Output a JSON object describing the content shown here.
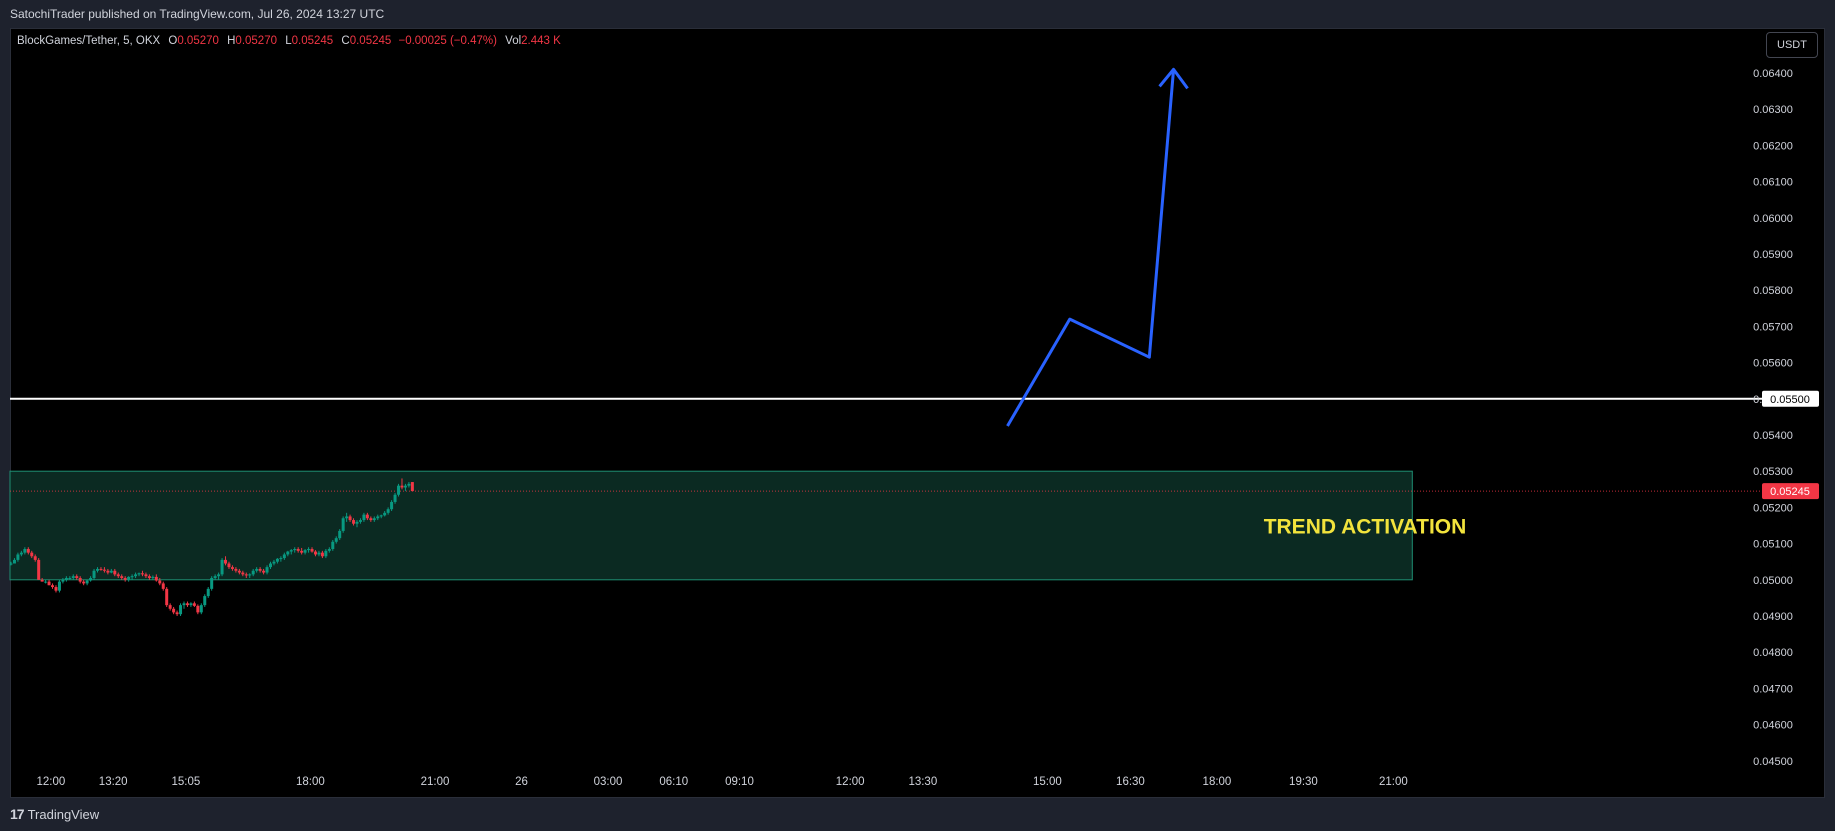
{
  "header": {
    "published_by": "SatochiTrader published on TradingView.com, Jul 26, 2024 13:27 UTC"
  },
  "legend": {
    "symbol": "BlockGames/Tether, 5, OKX",
    "open_label": "O",
    "open": "0.05270",
    "high_label": "H",
    "high": "0.05270",
    "low_label": "L",
    "low": "0.05245",
    "close_label": "C",
    "close": "0.05245",
    "change": "−0.00025 (−0.47%)",
    "vol_label": "Vol",
    "vol": "2.443 K"
  },
  "currency_button": "USDT",
  "footer": {
    "logo_text": "TradingView"
  },
  "chart_data": {
    "type": "candlestick",
    "title": "BlockGames/Tether, 5, OKX",
    "y_axis": {
      "min": 0.045,
      "max": 0.0645,
      "tick_labels": [
        "0.06400",
        "0.06300",
        "0.06200",
        "0.06100",
        "0.06000",
        "0.05900",
        "0.05800",
        "0.05700",
        "0.05600",
        "0.05500",
        "0.05400",
        "0.05300",
        "0.05200",
        "0.05100",
        "0.05000",
        "0.04900",
        "0.04800",
        "0.04700",
        "0.04600",
        "0.04500"
      ],
      "tick_values": [
        0.064,
        0.063,
        0.062,
        0.061,
        0.06,
        0.059,
        0.058,
        0.057,
        0.056,
        0.055,
        0.054,
        0.053,
        0.052,
        0.051,
        0.05,
        0.049,
        0.048,
        0.047,
        0.046,
        0.045
      ]
    },
    "x_axis": {
      "tick_labels": [
        "12:00",
        "13:20",
        "15:05",
        "18:00",
        "21:00",
        "26",
        "03:00",
        "06:10",
        "09:10",
        "12:00",
        "13:30",
        "15:00",
        "16:30",
        "18:00",
        "19:30",
        "21:00"
      ],
      "tick_index": [
        2,
        20,
        41,
        77,
        113,
        138,
        163,
        182,
        201,
        233,
        254,
        290,
        314,
        339,
        364,
        390
      ]
    },
    "horizontal_line": {
      "price": 0.055,
      "label": "0.05500",
      "color": "#ffffff"
    },
    "last_price": {
      "price": 0.05245,
      "label": "0.05245",
      "color": "#f23645"
    },
    "zone": {
      "top": 0.053,
      "bottom": 0.05,
      "start_index": 0,
      "end_index": 405,
      "label": "TREND ACTIVATION",
      "fill": "#0b2a22",
      "border": "#1f8f73",
      "text_color": "#f2e33c"
    },
    "projection": {
      "color": "#2962ff",
      "points": [
        [
          288,
          0.05425
        ],
        [
          306,
          0.0572
        ],
        [
          329,
          0.05615
        ],
        [
          336,
          0.0641
        ]
      ]
    },
    "colors": {
      "up": "#089981",
      "down": "#f23645"
    },
    "candles": [
      [
        0.05045,
        0.0505,
        0.0504,
        0.05045
      ],
      [
        0.05045,
        0.0506,
        0.05045,
        0.05055
      ],
      [
        0.05055,
        0.05075,
        0.0505,
        0.0507
      ],
      [
        0.0507,
        0.0508,
        0.05065,
        0.05075
      ],
      [
        0.05075,
        0.0509,
        0.0507,
        0.05085
      ],
      [
        0.05085,
        0.0509,
        0.0507,
        0.05075
      ],
      [
        0.05075,
        0.0508,
        0.0506,
        0.05065
      ],
      [
        0.05065,
        0.0507,
        0.0505,
        0.05055
      ],
      [
        0.05055,
        0.0506,
        0.05,
        0.05
      ],
      [
        0.05,
        0.05005,
        0.04995,
        0.04995
      ],
      [
        0.04995,
        0.05,
        0.0499,
        0.04995
      ],
      [
        0.04995,
        0.05,
        0.04985,
        0.04985
      ],
      [
        0.04985,
        0.0499,
        0.04975,
        0.0498
      ],
      [
        0.0498,
        0.04985,
        0.04965,
        0.0497
      ],
      [
        0.0497,
        0.05,
        0.04965,
        0.04995
      ],
      [
        0.04995,
        0.05005,
        0.0499,
        0.05
      ],
      [
        0.05,
        0.0501,
        0.04995,
        0.05005
      ],
      [
        0.05005,
        0.0501,
        0.05,
        0.05005
      ],
      [
        0.05005,
        0.05015,
        0.05,
        0.0501
      ],
      [
        0.0501,
        0.05015,
        0.05,
        0.05005
      ],
      [
        0.05005,
        0.0501,
        0.0499,
        0.04995
      ],
      [
        0.04995,
        0.05,
        0.04985,
        0.0499
      ],
      [
        0.0499,
        0.05,
        0.04985,
        0.04998
      ],
      [
        0.04998,
        0.0501,
        0.04995,
        0.05005
      ],
      [
        0.05005,
        0.0503,
        0.05,
        0.05025
      ],
      [
        0.05025,
        0.05035,
        0.0502,
        0.0503
      ],
      [
        0.0503,
        0.05035,
        0.05025,
        0.05028
      ],
      [
        0.05028,
        0.05035,
        0.0502,
        0.05025
      ],
      [
        0.05025,
        0.0503,
        0.05015,
        0.0502
      ],
      [
        0.0502,
        0.0503,
        0.05018,
        0.05025
      ],
      [
        0.05025,
        0.0503,
        0.0501,
        0.05015
      ],
      [
        0.05015,
        0.0502,
        0.05005,
        0.0501
      ],
      [
        0.0501,
        0.05015,
        0.05,
        0.05005
      ],
      [
        0.05005,
        0.0501,
        0.04995,
        0.05
      ],
      [
        0.05,
        0.0501,
        0.04995,
        0.05008
      ],
      [
        0.05008,
        0.05015,
        0.05,
        0.0501
      ],
      [
        0.0501,
        0.0502,
        0.05005,
        0.05015
      ],
      [
        0.05015,
        0.0502,
        0.0501,
        0.05018
      ],
      [
        0.05018,
        0.05025,
        0.0501,
        0.05015
      ],
      [
        0.05015,
        0.0502,
        0.05005,
        0.0501
      ],
      [
        0.0501,
        0.05015,
        0.05,
        0.05005
      ],
      [
        0.05005,
        0.05012,
        0.05,
        0.05008
      ],
      [
        0.05008,
        0.05015,
        0.04995,
        0.04998
      ],
      [
        0.04998,
        0.05005,
        0.04985,
        0.0499
      ],
      [
        0.0499,
        0.04995,
        0.0497,
        0.04975
      ],
      [
        0.04975,
        0.0498,
        0.04925,
        0.0493
      ],
      [
        0.0493,
        0.04935,
        0.04915,
        0.0492
      ],
      [
        0.0492,
        0.04925,
        0.04905,
        0.0491
      ],
      [
        0.0491,
        0.04915,
        0.049,
        0.04905
      ],
      [
        0.04905,
        0.04935,
        0.049,
        0.0493
      ],
      [
        0.0493,
        0.0494,
        0.0492,
        0.04935
      ],
      [
        0.04935,
        0.0494,
        0.04925,
        0.0493
      ],
      [
        0.0493,
        0.04938,
        0.04925,
        0.04935
      ],
      [
        0.04935,
        0.0494,
        0.04925,
        0.04928
      ],
      [
        0.04928,
        0.04932,
        0.04905,
        0.0491
      ],
      [
        0.0491,
        0.04935,
        0.04905,
        0.0493
      ],
      [
        0.0493,
        0.0496,
        0.04925,
        0.04955
      ],
      [
        0.04955,
        0.0498,
        0.0495,
        0.04975
      ],
      [
        0.04975,
        0.0501,
        0.0497,
        0.05005
      ],
      [
        0.05005,
        0.05015,
        0.05,
        0.0501
      ],
      [
        0.0501,
        0.0502,
        0.05,
        0.05015
      ],
      [
        0.05015,
        0.0506,
        0.0501,
        0.05055
      ],
      [
        0.05055,
        0.05065,
        0.0504,
        0.05045
      ],
      [
        0.05045,
        0.0505,
        0.0503,
        0.05035
      ],
      [
        0.05035,
        0.0504,
        0.05025,
        0.0503
      ],
      [
        0.0503,
        0.05035,
        0.0502,
        0.05025
      ],
      [
        0.05025,
        0.0503,
        0.05015,
        0.0502
      ],
      [
        0.0502,
        0.05025,
        0.0501,
        0.05015
      ],
      [
        0.05015,
        0.0502,
        0.05005,
        0.05012
      ],
      [
        0.05012,
        0.05018,
        0.05005,
        0.05015
      ],
      [
        0.05015,
        0.0503,
        0.0501,
        0.05025
      ],
      [
        0.05025,
        0.05035,
        0.0502,
        0.0503
      ],
      [
        0.0503,
        0.05035,
        0.0502,
        0.05025
      ],
      [
        0.05025,
        0.0503,
        0.05015,
        0.0502
      ],
      [
        0.0502,
        0.0504,
        0.05015,
        0.05035
      ],
      [
        0.05035,
        0.0505,
        0.0503,
        0.05045
      ],
      [
        0.05045,
        0.05055,
        0.0504,
        0.0505
      ],
      [
        0.0505,
        0.0506,
        0.05045,
        0.05058
      ],
      [
        0.05058,
        0.05065,
        0.0505,
        0.0506
      ],
      [
        0.0506,
        0.05075,
        0.05055,
        0.0507
      ],
      [
        0.0507,
        0.0508,
        0.05065,
        0.05078
      ],
      [
        0.05078,
        0.05085,
        0.0507,
        0.05082
      ],
      [
        0.05082,
        0.0509,
        0.05075,
        0.05085
      ],
      [
        0.05085,
        0.0509,
        0.05075,
        0.0508
      ],
      [
        0.0508,
        0.05088,
        0.0507,
        0.05075
      ],
      [
        0.05075,
        0.05085,
        0.0507,
        0.05082
      ],
      [
        0.05082,
        0.0509,
        0.05075,
        0.05085
      ],
      [
        0.05085,
        0.0509,
        0.05075,
        0.05078
      ],
      [
        0.05078,
        0.05082,
        0.05065,
        0.0507
      ],
      [
        0.0507,
        0.0508,
        0.05065,
        0.05075
      ],
      [
        0.05075,
        0.0508,
        0.0506,
        0.05065
      ],
      [
        0.05065,
        0.05085,
        0.0506,
        0.0508
      ],
      [
        0.0508,
        0.0509,
        0.05075,
        0.05085
      ],
      [
        0.05085,
        0.0511,
        0.0508,
        0.05105
      ],
      [
        0.05105,
        0.0512,
        0.051,
        0.05115
      ],
      [
        0.05115,
        0.0514,
        0.0511,
        0.05135
      ],
      [
        0.05135,
        0.05175,
        0.0513,
        0.0517
      ],
      [
        0.0517,
        0.05185,
        0.0516,
        0.05175
      ],
      [
        0.05175,
        0.0518,
        0.0516,
        0.05165
      ],
      [
        0.05165,
        0.0517,
        0.0515,
        0.05155
      ],
      [
        0.05155,
        0.05165,
        0.05145,
        0.0516
      ],
      [
        0.0516,
        0.0517,
        0.05155,
        0.05165
      ],
      [
        0.05165,
        0.05185,
        0.0516,
        0.0518
      ],
      [
        0.0518,
        0.05185,
        0.05165,
        0.0517
      ],
      [
        0.0517,
        0.05175,
        0.0516,
        0.05165
      ],
      [
        0.05165,
        0.05175,
        0.0516,
        0.0517
      ],
      [
        0.0517,
        0.0518,
        0.05165,
        0.05175
      ],
      [
        0.05175,
        0.0518,
        0.0517,
        0.05178
      ],
      [
        0.05178,
        0.0519,
        0.05175,
        0.05185
      ],
      [
        0.05185,
        0.052,
        0.0518,
        0.05195
      ],
      [
        0.05195,
        0.0522,
        0.0519,
        0.05215
      ],
      [
        0.05215,
        0.0524,
        0.0521,
        0.05235
      ],
      [
        0.05235,
        0.05265,
        0.0523,
        0.0526
      ],
      [
        0.0526,
        0.0528,
        0.0525,
        0.05255
      ],
      [
        0.05255,
        0.05265,
        0.05245,
        0.0526
      ],
      [
        0.0526,
        0.0527,
        0.05255,
        0.05265
      ],
      [
        0.0527,
        0.0527,
        0.05245,
        0.05245
      ]
    ]
  }
}
